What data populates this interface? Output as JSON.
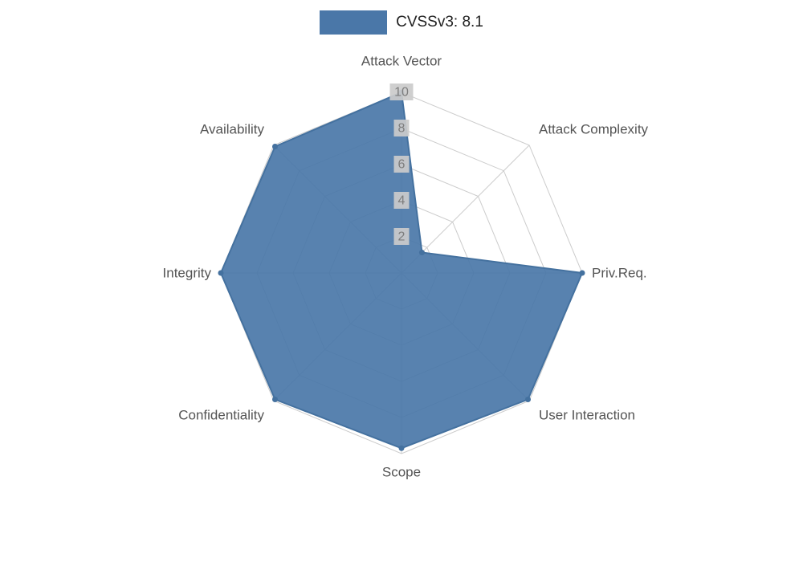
{
  "legend": {
    "label": "CVSSv3: 8.1",
    "color": "#4a77a8"
  },
  "chart_data": {
    "type": "radar",
    "title": "",
    "categories": [
      "Attack Vector",
      "Attack Complexity",
      "Priv.Req.",
      "User Interaction",
      "Scope",
      "Confidentiality",
      "Integrity",
      "Availability"
    ],
    "series": [
      {
        "name": "CVSSv3: 8.1",
        "color": "#4a77a8",
        "stroke": "#44719f",
        "fill_opacity": 0.92,
        "values": [
          10,
          1.6,
          10,
          9.9,
          9.7,
          9.9,
          10,
          9.9
        ]
      }
    ],
    "ticks": [
      2,
      4,
      6,
      8,
      10
    ],
    "rlim": [
      0,
      10
    ],
    "grid": true,
    "legend_position": "top",
    "colors": {
      "grid": "#cccccc",
      "axis_label": "#545454",
      "tick_label": "#7d7d7d",
      "tick_backdrop": "#cbcbcb"
    }
  }
}
